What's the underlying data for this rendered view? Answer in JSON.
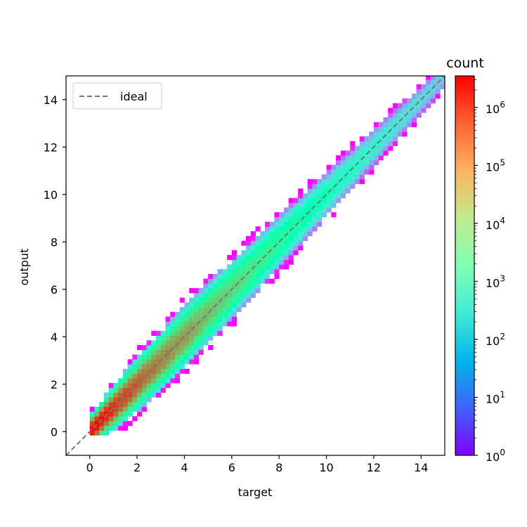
{
  "chart_data": {
    "type": "heatmap",
    "subtype": "2d-histogram",
    "xlabel": "target",
    "ylabel": "output",
    "xlim": [
      -1,
      15
    ],
    "ylim": [
      -1,
      15
    ],
    "x_ticks": [
      0,
      2,
      4,
      6,
      8,
      10,
      12,
      14
    ],
    "y_ticks": [
      0,
      2,
      4,
      6,
      8,
      10,
      12,
      14
    ],
    "bin_width": 0.2,
    "color_scale": "log",
    "colormap": "rainbow",
    "colorbar": {
      "title": "count",
      "range": [
        1,
        3500000
      ],
      "tick_labels": [
        {
          "base": "10",
          "exp": "0",
          "value": 1
        },
        {
          "base": "10",
          "exp": "1",
          "value": 10
        },
        {
          "base": "10",
          "exp": "2",
          "value": 100
        },
        {
          "base": "10",
          "exp": "3",
          "value": 1000
        },
        {
          "base": "10",
          "exp": "4",
          "value": 10000
        },
        {
          "base": "10",
          "exp": "5",
          "value": 100000
        },
        {
          "base": "10",
          "exp": "6",
          "value": 1000000
        }
      ]
    },
    "density_profile": [
      {
        "target": 0.2,
        "peak_count": 3500000,
        "half_width": 0.85,
        "min_output": -0.15
      },
      {
        "target": 1,
        "peak_count": 1500000,
        "half_width": 1.15,
        "min_output": -0.15
      },
      {
        "target": 2,
        "peak_count": 600000,
        "half_width": 1.35
      },
      {
        "target": 4,
        "peak_count": 150000,
        "half_width": 1.55
      },
      {
        "target": 6,
        "peak_count": 30000,
        "half_width": 1.45
      },
      {
        "target": 8,
        "peak_count": 6000,
        "half_width": 1.3
      },
      {
        "target": 10,
        "peak_count": 1500,
        "half_width": 1.1
      },
      {
        "target": 12,
        "peak_count": 400,
        "half_width": 0.9
      },
      {
        "target": 14,
        "peak_count": 150,
        "half_width": 0.7
      },
      {
        "target": 15,
        "peak_count": 100,
        "half_width": 0.6
      }
    ],
    "reference_line": {
      "name": "ideal",
      "style": "dashed",
      "color": "#777777",
      "from": [
        -1,
        -1
      ],
      "to": [
        15,
        15
      ]
    },
    "legend": {
      "placement": "top-left",
      "entries": [
        "ideal"
      ]
    },
    "grid": false
  }
}
